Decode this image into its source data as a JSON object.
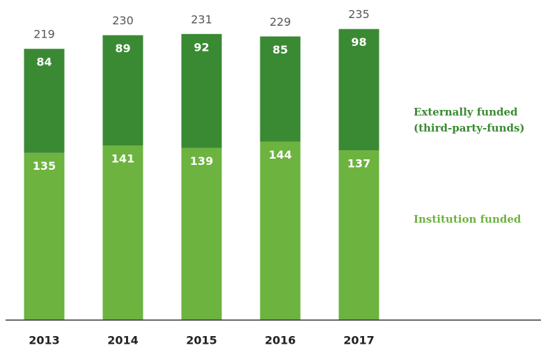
{
  "chart_data": {
    "type": "stacked_bar",
    "categories": [
      "2013",
      "2014",
      "2015",
      "2016",
      "2017"
    ],
    "series": [
      {
        "name": "Institution funded",
        "color": "#6db33f",
        "values": [
          135,
          141,
          139,
          144,
          137
        ]
      },
      {
        "name": "Externally funded\n(third-party-funds)",
        "color": "#3a8a33",
        "values": [
          84,
          89,
          92,
          85,
          98
        ]
      }
    ],
    "totals": [
      219,
      230,
      231,
      229,
      235
    ],
    "ylim": [
      0,
      250
    ]
  }
}
